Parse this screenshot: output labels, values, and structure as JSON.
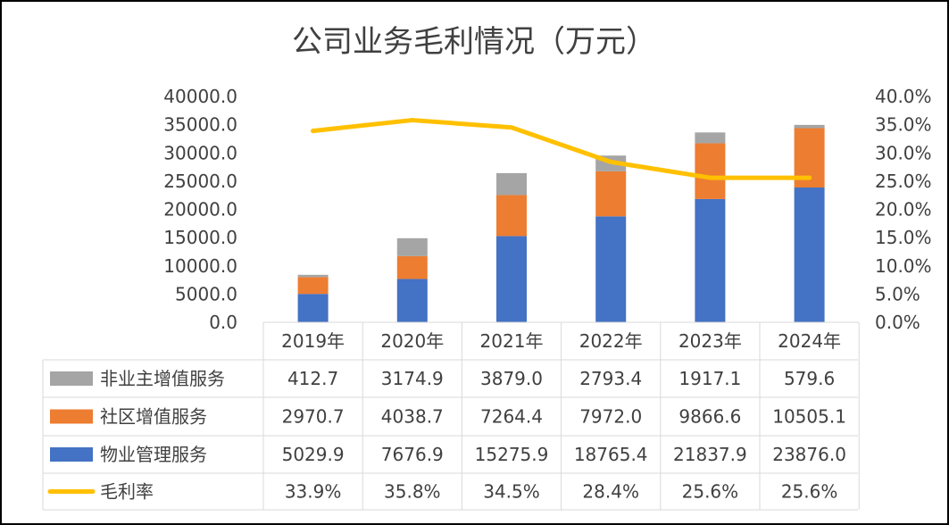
{
  "chart_data": {
    "type": "bar",
    "stacked": true,
    "title": "公司业务毛利情况（万元）",
    "categories": [
      "2019年",
      "2020年",
      "2021年",
      "2022年",
      "2023年",
      "2024年"
    ],
    "ylim": [
      0,
      40000
    ],
    "yticks": [
      "0.0",
      "5000.0",
      "10000.0",
      "15000.0",
      "20000.0",
      "25000.0",
      "30000.0",
      "35000.0",
      "40000.0"
    ],
    "y2lim": [
      0,
      40
    ],
    "y2ticks": [
      "0.0%",
      "5.0%",
      "10.0%",
      "15.0%",
      "20.0%",
      "25.0%",
      "30.0%",
      "35.0%",
      "40.0%"
    ],
    "series": [
      {
        "name": "非业主增值服务",
        "kind": "bar",
        "color": "#A5A5A5",
        "values": [
          412.7,
          3174.9,
          3879.0,
          2793.4,
          1917.1,
          579.6
        ],
        "labels": [
          "412.7",
          "3174.9",
          "3879.0",
          "2793.4",
          "1917.1",
          "579.6"
        ]
      },
      {
        "name": "社区增值服务",
        "kind": "bar",
        "color": "#ED7D31",
        "values": [
          2970.7,
          4038.7,
          7264.4,
          7972.0,
          9866.6,
          10505.1
        ],
        "labels": [
          "2970.7",
          "4038.7",
          "7264.4",
          "7972.0",
          "9866.6",
          "10505.1"
        ]
      },
      {
        "name": "物业管理服务",
        "kind": "bar",
        "color": "#4472C4",
        "values": [
          5029.9,
          7676.9,
          15275.9,
          18765.4,
          21837.9,
          23876.0
        ],
        "labels": [
          "5029.9",
          "7676.9",
          "15275.9",
          "18765.4",
          "21837.9",
          "23876.0"
        ]
      },
      {
        "name": "毛利率",
        "kind": "line",
        "axis": "right",
        "color": "#FFC000",
        "values": [
          33.9,
          35.8,
          34.5,
          28.4,
          25.6,
          25.6
        ],
        "labels": [
          "33.9%",
          "35.8%",
          "34.5%",
          "28.4%",
          "25.6%",
          "25.6%"
        ]
      }
    ],
    "grid": false,
    "legend": "data-table"
  }
}
